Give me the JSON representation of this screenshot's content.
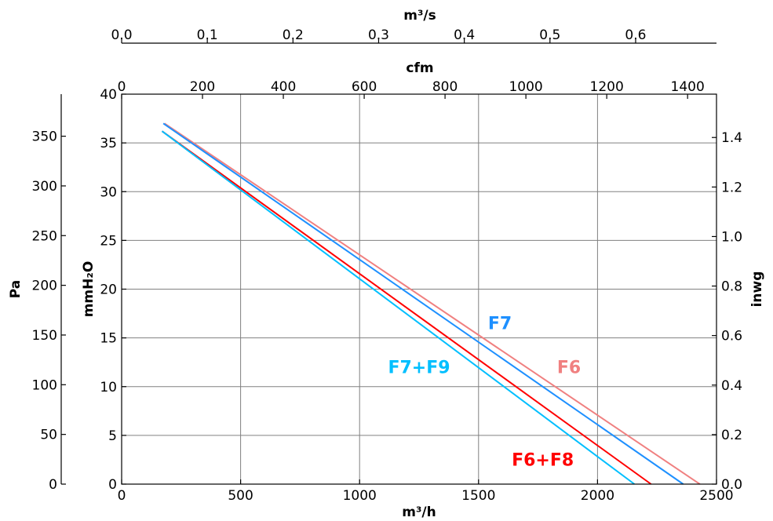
{
  "chart_data": {
    "type": "line",
    "title": "",
    "grid": true,
    "axes": {
      "bottom": {
        "label": "m³/h",
        "range": [
          0,
          2500
        ],
        "ticks": [
          "0",
          "500",
          "1000",
          "1500",
          "2000",
          "2500"
        ]
      },
      "top_cfm": {
        "label": "cfm",
        "range": [
          0,
          1471.5
        ],
        "ticks": [
          "0",
          "200",
          "400",
          "600",
          "800",
          "1000",
          "1200",
          "1400"
        ]
      },
      "top_m3s": {
        "label": "m³/s",
        "range": [
          0,
          0.6944
        ],
        "ticks": [
          "0.0",
          "0.1",
          "0.2",
          "0.3",
          "0.4",
          "0.5",
          "0.6"
        ]
      },
      "left_mmh2o": {
        "label": "mmH₂O",
        "range": [
          0,
          40
        ],
        "ticks": [
          "0",
          "5",
          "10",
          "15",
          "20",
          "25",
          "30",
          "35",
          "40"
        ]
      },
      "left_pa": {
        "label": "Pa",
        "range": [
          0,
          392.3
        ],
        "ticks": [
          "0",
          "50",
          "100",
          "150",
          "200",
          "250",
          "300",
          "350"
        ]
      },
      "right_inwg": {
        "label": "inwg",
        "range": [
          0,
          1.575
        ],
        "ticks": [
          "0.0",
          "0.2",
          "0.4",
          "0.6",
          "0.8",
          "1.0",
          "1.2",
          "1.4"
        ]
      }
    },
    "series": [
      {
        "name": "F6",
        "color": "#f08080",
        "x": [
          180,
          2430
        ],
        "y": [
          37.0,
          0
        ]
      },
      {
        "name": "F7",
        "color": "#1e90ff",
        "x": [
          175,
          2360
        ],
        "y": [
          37.0,
          0
        ]
      },
      {
        "name": "F6+F8",
        "color": "#ff0000",
        "x": [
          170,
          2225
        ],
        "y": [
          36.2,
          0
        ]
      },
      {
        "name": "F7+F9",
        "color": "#00bfff",
        "x": [
          170,
          2155
        ],
        "y": [
          36.2,
          0
        ]
      }
    ],
    "labels": [
      {
        "text": "F7",
        "color": "#1e90ff",
        "x": 1590,
        "y": 15.9
      },
      {
        "text": "F6",
        "color": "#f08080",
        "x": 1880,
        "y": 11.4
      },
      {
        "text": "F7+F9",
        "color": "#00bfff",
        "x": 1250,
        "y": 11.4
      },
      {
        "text": "F6+F8",
        "color": "#ff0000",
        "x": 1770,
        "y": 1.9
      }
    ]
  }
}
